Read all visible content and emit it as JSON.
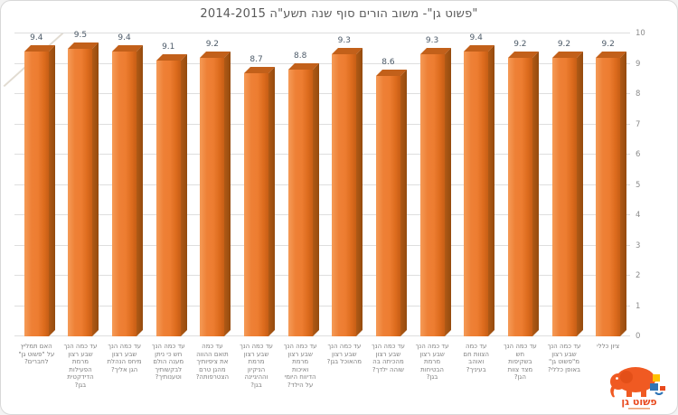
{
  "window": {
    "background": "#ffffff",
    "border_color": "#d8d8d8"
  },
  "chart_data": {
    "type": "bar",
    "style": "3d-column",
    "direction": "rtl",
    "title": "\"פשוט גן\"- משוב הורים סוף שנה תשע\"ה 2014-2015",
    "categories": [
      "האם תמליץ\nעל \"פשוט גן\"\nלחברים?",
      "עד כמה הנך\nשבע רצון\nמרמת\nהפעילות\nהדידקטית\nבגן?",
      "עד כמה הנך\nשבע רצון\nמיחס הנהלת\nהגן אליך?",
      "עד כמה הנך\nחש כי ניתן\nמענה הולם\nלבקשותיך\nוטענותיך?",
      "עד כמה\nתואם ההווה\nאת ציפיותיך\nמהגן טרם\nהצטרפותה?",
      "עד כמה הנך\nשבע רצון\nמרמת\nהניקיון\nוההיגיינה\nבגן?",
      "עד כמה הנך\nשבע רצון\nמרמת\nואיכות\nהדיווח היומי\nעל הילד?",
      "עד כמה הנך\nשבע רצון\nמהאוכל בגן?",
      "עד כמה הנך\nשבע רצון\nמהכיתה בה\nשוהה ילדך?",
      "עד כמה הנך\nשבע רצון\nמרמת\nהבטיחות\nבגן?",
      "עד כמה\nהצוות חם\nואוהב\nבעיניך?",
      "עד כמה הנך\nחש\nבשקיפות\nמצד צוות\nהגן?",
      "עד כמה הנך\nשבע רצון\nמ\"פשוט גן\"\nבאופן כללי?",
      "ציון כללי"
    ],
    "values": [
      9.4,
      9.5,
      9.4,
      9.1,
      9.2,
      8.7,
      8.8,
      9.3,
      8.6,
      9.3,
      9.4,
      9.2,
      9.2,
      9.2
    ],
    "ylim": [
      0,
      10
    ],
    "yticks": [
      0,
      1,
      2,
      3,
      4,
      5,
      6,
      7,
      8,
      9,
      10
    ],
    "yaxis_side": "right",
    "grid": true,
    "legend": "none",
    "colors": {
      "bar_front": "#ED7D31",
      "bar_side": "#9E4F10",
      "bar_top": "#C2601A",
      "value_label": "#4C5A68",
      "axis_label": "#8C8C8C",
      "gridline": "#DEDEDE",
      "title": "#595959"
    }
  },
  "logo": {
    "name": "פשוט גן",
    "text_color": "#E8491D",
    "elephant_color": "#F05A22",
    "block_colors": [
      "#FFC000",
      "#2E75B6",
      "#E8491D"
    ]
  }
}
